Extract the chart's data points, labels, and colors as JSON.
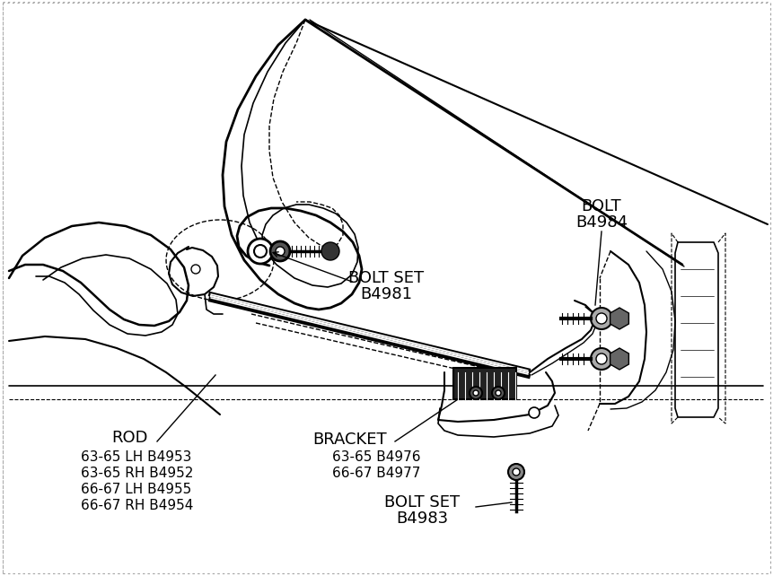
{
  "bg_color": "#ffffff",
  "fig_width": 8.61,
  "fig_height": 6.42,
  "dpi": 100,
  "label_bolt_set_1_line1": "BOLT SET",
  "label_bolt_set_1_line2": "B4981",
  "label_bolt_b4984_line1": "BOLT",
  "label_bolt_b4984_line2": "B4984",
  "label_rod": "ROD",
  "label_rod_p1": "63-65 LH B4953",
  "label_rod_p2": "63-65 RH B4952",
  "label_rod_p3": "66-67 LH B4955",
  "label_rod_p4": "66-67 RH B4954",
  "label_bracket": "BRACKET",
  "label_bracket_p1": "63-65 B4976",
  "label_bracket_p2": "66-67 B4977",
  "label_bolt_set_2_line1": "BOLT SET",
  "label_bolt_set_2_line2": "B4983"
}
